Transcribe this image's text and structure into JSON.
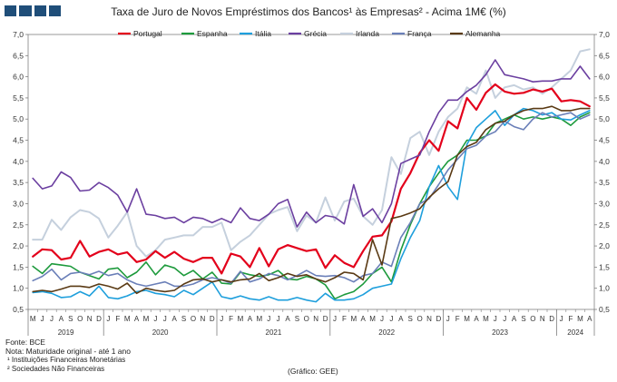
{
  "header": {
    "title": "Taxa de Juro de Novos Empréstimos dos Bancos¹ às Empresas² - Acima 1M€ (%)"
  },
  "footer": {
    "source": "Fonte: BCE",
    "note": "Nota: Maturidade original - até 1 ano",
    "note1": "¹ Instituições Financeiras Monetárias",
    "note2": "² Sociedades Não Financeiras",
    "credit": "(Gráfico: GEE)"
  },
  "chart_data": {
    "type": "line",
    "title": "Taxa de Juro de Novos Empréstimos dos Bancos¹ às Empresas² - Acima 1M€ (%)",
    "ylim": [
      0.5,
      7.0
    ],
    "yticks": [
      "7,0",
      "6,5",
      "6,0",
      "5,5",
      "5,0",
      "4,5",
      "4,0",
      "3,5",
      "3,0",
      "2,5",
      "2,0",
      "1,5",
      "1,0",
      "0,5"
    ],
    "grid": false,
    "legend": "top",
    "x": [
      "2019-05",
      "2019-06",
      "2019-07",
      "2019-08",
      "2019-09",
      "2019-10",
      "2019-11",
      "2019-12",
      "2020-01",
      "2020-02",
      "2020-03",
      "2020-04",
      "2020-05",
      "2020-06",
      "2020-07",
      "2020-08",
      "2020-09",
      "2020-10",
      "2020-11",
      "2020-12",
      "2021-01",
      "2021-02",
      "2021-03",
      "2021-04",
      "2021-05",
      "2021-06",
      "2021-07",
      "2021-08",
      "2021-09",
      "2021-10",
      "2021-11",
      "2021-12",
      "2022-01",
      "2022-02",
      "2022-03",
      "2022-04",
      "2022-05",
      "2022-06",
      "2022-07",
      "2022-08",
      "2022-09",
      "2022-10",
      "2022-11",
      "2022-12",
      "2023-01",
      "2023-02",
      "2023-03",
      "2023-04",
      "2023-05",
      "2023-06",
      "2023-07",
      "2023-08",
      "2023-09",
      "2023-10",
      "2023-11",
      "2023-12",
      "2024-01",
      "2024-02",
      "2024-03",
      "2024-04"
    ],
    "month_labels": [
      "M",
      "J",
      "J",
      "A",
      "S",
      "O",
      "N",
      "D",
      "J",
      "F",
      "M",
      "A",
      "M",
      "J",
      "J",
      "A",
      "S",
      "O",
      "N",
      "D",
      "J",
      "F",
      "M",
      "A",
      "M",
      "J",
      "J",
      "A",
      "S",
      "O",
      "N",
      "D",
      "J",
      "F",
      "M",
      "A",
      "M",
      "J",
      "J",
      "A",
      "S",
      "O",
      "N",
      "D",
      "J",
      "F",
      "M",
      "A",
      "M",
      "J",
      "J",
      "A",
      "S",
      "O",
      "N",
      "D",
      "J",
      "F",
      "M",
      "A"
    ],
    "years": [
      {
        "label": "2019",
        "start": 0,
        "end": 7
      },
      {
        "label": "2020",
        "start": 8,
        "end": 19
      },
      {
        "label": "2021",
        "start": 20,
        "end": 31
      },
      {
        "label": "2022",
        "start": 32,
        "end": 43
      },
      {
        "label": "2023",
        "start": 44,
        "end": 55
      },
      {
        "label": "2024",
        "start": 56,
        "end": 59
      }
    ],
    "series": [
      {
        "name": "Portugal",
        "color": "#e3001b",
        "width": 2.2,
        "values": [
          1.75,
          1.92,
          1.9,
          1.68,
          1.72,
          2.12,
          1.75,
          1.86,
          1.92,
          1.8,
          1.85,
          1.62,
          1.68,
          1.88,
          1.72,
          1.86,
          1.7,
          1.62,
          1.72,
          1.72,
          1.35,
          1.82,
          1.75,
          1.5,
          1.95,
          1.52,
          1.92,
          2.02,
          1.95,
          1.88,
          1.92,
          1.48,
          1.78,
          1.6,
          1.5,
          1.88,
          2.22,
          2.25,
          2.58,
          3.35,
          3.72,
          4.2,
          4.5,
          4.25,
          4.95,
          4.78,
          5.5,
          5.22,
          5.62,
          5.82,
          5.65,
          5.6,
          5.62,
          5.7,
          5.65,
          5.72,
          5.42,
          5.45,
          5.42,
          5.3
        ]
      },
      {
        "name": "Espanha",
        "color": "#1d9a3c",
        "width": 1.6,
        "values": [
          1.52,
          1.35,
          1.58,
          1.55,
          1.52,
          1.38,
          1.3,
          1.22,
          1.45,
          1.48,
          1.25,
          1.38,
          1.62,
          1.32,
          1.55,
          1.48,
          1.3,
          1.42,
          1.22,
          1.38,
          1.12,
          1.1,
          1.38,
          1.32,
          1.28,
          1.32,
          1.42,
          1.22,
          1.2,
          1.28,
          1.22,
          1.08,
          0.75,
          0.85,
          0.92,
          1.1,
          1.35,
          1.5,
          1.15,
          1.9,
          2.5,
          3.0,
          3.4,
          3.72,
          4.0,
          4.15,
          4.5,
          4.5,
          4.6,
          4.9,
          5.0,
          5.1,
          5.0,
          5.05,
          5.0,
          5.05,
          5.0,
          4.85,
          5.05,
          5.15
        ]
      },
      {
        "name": "Itália",
        "color": "#1e9fdc",
        "width": 1.6,
        "values": [
          0.9,
          0.92,
          0.88,
          0.78,
          0.8,
          0.92,
          0.82,
          1.05,
          0.78,
          0.75,
          0.82,
          0.92,
          0.95,
          0.88,
          0.85,
          0.8,
          0.95,
          0.85,
          1.0,
          1.15,
          0.8,
          0.75,
          0.82,
          0.75,
          0.72,
          0.8,
          0.72,
          0.72,
          0.78,
          0.72,
          0.68,
          0.88,
          0.72,
          0.72,
          0.75,
          0.85,
          1.0,
          1.05,
          1.1,
          1.7,
          2.2,
          2.6,
          3.4,
          3.9,
          3.4,
          3.1,
          4.4,
          4.8,
          5.0,
          5.2,
          4.85,
          5.1,
          5.25,
          5.2,
          5.1,
          5.15,
          5.0,
          4.98,
          5.1,
          5.2
        ]
      },
      {
        "name": "Grécia",
        "color": "#6b3fa0",
        "width": 1.6,
        "values": [
          3.6,
          3.35,
          3.42,
          3.75,
          3.62,
          3.3,
          3.32,
          3.5,
          3.38,
          3.2,
          2.8,
          3.35,
          2.75,
          2.72,
          2.65,
          2.68,
          2.55,
          2.68,
          2.65,
          2.55,
          2.65,
          2.55,
          2.9,
          2.65,
          2.6,
          2.75,
          3.0,
          3.1,
          2.45,
          2.8,
          2.55,
          2.72,
          2.68,
          2.52,
          3.45,
          2.7,
          2.88,
          2.55,
          3.0,
          3.95,
          4.05,
          4.15,
          4.7,
          5.15,
          5.45,
          5.45,
          5.65,
          5.8,
          6.05,
          6.4,
          6.05,
          6.0,
          5.95,
          5.88,
          5.9,
          5.9,
          5.95,
          5.95,
          6.25,
          5.95
        ]
      },
      {
        "name": "Irlanda",
        "color": "#c5d0dd",
        "width": 2.0,
        "values": [
          2.15,
          2.15,
          2.62,
          2.38,
          2.68,
          2.85,
          2.8,
          2.65,
          2.2,
          2.48,
          2.8,
          2.0,
          1.75,
          1.9,
          2.15,
          2.2,
          2.25,
          2.25,
          2.45,
          2.45,
          2.55,
          1.9,
          2.1,
          2.25,
          2.5,
          2.75,
          2.85,
          2.92,
          2.35,
          2.72,
          2.55,
          3.15,
          2.6,
          3.05,
          3.12,
          2.7,
          2.5,
          2.85,
          4.1,
          3.7,
          4.55,
          4.7,
          4.15,
          4.7,
          5.05,
          5.25,
          5.75,
          5.6,
          6.15,
          5.5,
          5.75,
          5.8,
          5.7,
          5.75,
          5.6,
          5.75,
          5.95,
          6.15,
          6.6,
          6.65
        ]
      },
      {
        "name": "França",
        "color": "#6a7fb8",
        "width": 1.6,
        "values": [
          1.18,
          1.28,
          1.45,
          1.2,
          1.35,
          1.38,
          1.32,
          1.4,
          1.3,
          1.35,
          1.2,
          1.1,
          1.05,
          1.1,
          1.15,
          1.05,
          1.05,
          1.1,
          1.2,
          1.25,
          1.2,
          1.12,
          1.4,
          1.15,
          1.22,
          1.35,
          1.3,
          1.2,
          1.3,
          1.42,
          1.3,
          1.28,
          1.3,
          1.25,
          1.15,
          1.3,
          1.35,
          1.62,
          1.52,
          2.2,
          2.55,
          3.0,
          3.12,
          3.45,
          3.8,
          4.05,
          4.3,
          4.38,
          4.6,
          4.7,
          4.95,
          4.82,
          4.75,
          5.0,
          5.15,
          5.05,
          5.1,
          5.15,
          5.0,
          5.1
        ]
      },
      {
        "name": "Alemanha",
        "color": "#5a3a14",
        "width": 1.6,
        "values": [
          0.92,
          0.95,
          0.92,
          0.98,
          1.05,
          1.05,
          1.02,
          1.1,
          1.05,
          0.98,
          1.12,
          0.88,
          1.0,
          0.95,
          0.92,
          0.95,
          1.1,
          1.2,
          1.22,
          1.15,
          1.2,
          1.15,
          1.2,
          1.22,
          1.35,
          1.18,
          1.25,
          1.35,
          1.28,
          1.32,
          1.22,
          1.15,
          1.25,
          1.38,
          1.35,
          1.2,
          2.15,
          1.55,
          2.65,
          2.7,
          2.78,
          2.88,
          3.15,
          3.35,
          3.52,
          4.15,
          4.35,
          4.45,
          4.75,
          4.9,
          4.95,
          5.1,
          5.2,
          5.25,
          5.25,
          5.3,
          5.2,
          5.2,
          5.25,
          5.25
        ]
      }
    ]
  }
}
